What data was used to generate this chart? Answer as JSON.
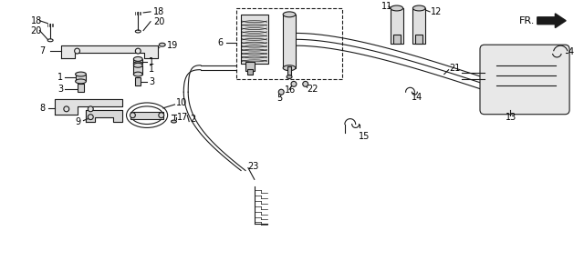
{
  "bg_color": "#ffffff",
  "fig_width": 6.4,
  "fig_height": 2.87,
  "dpi": 100,
  "line_color": "#1a1a1a",
  "label_color": "#000000",
  "label_fontsize": 7,
  "line_width": 0.8
}
